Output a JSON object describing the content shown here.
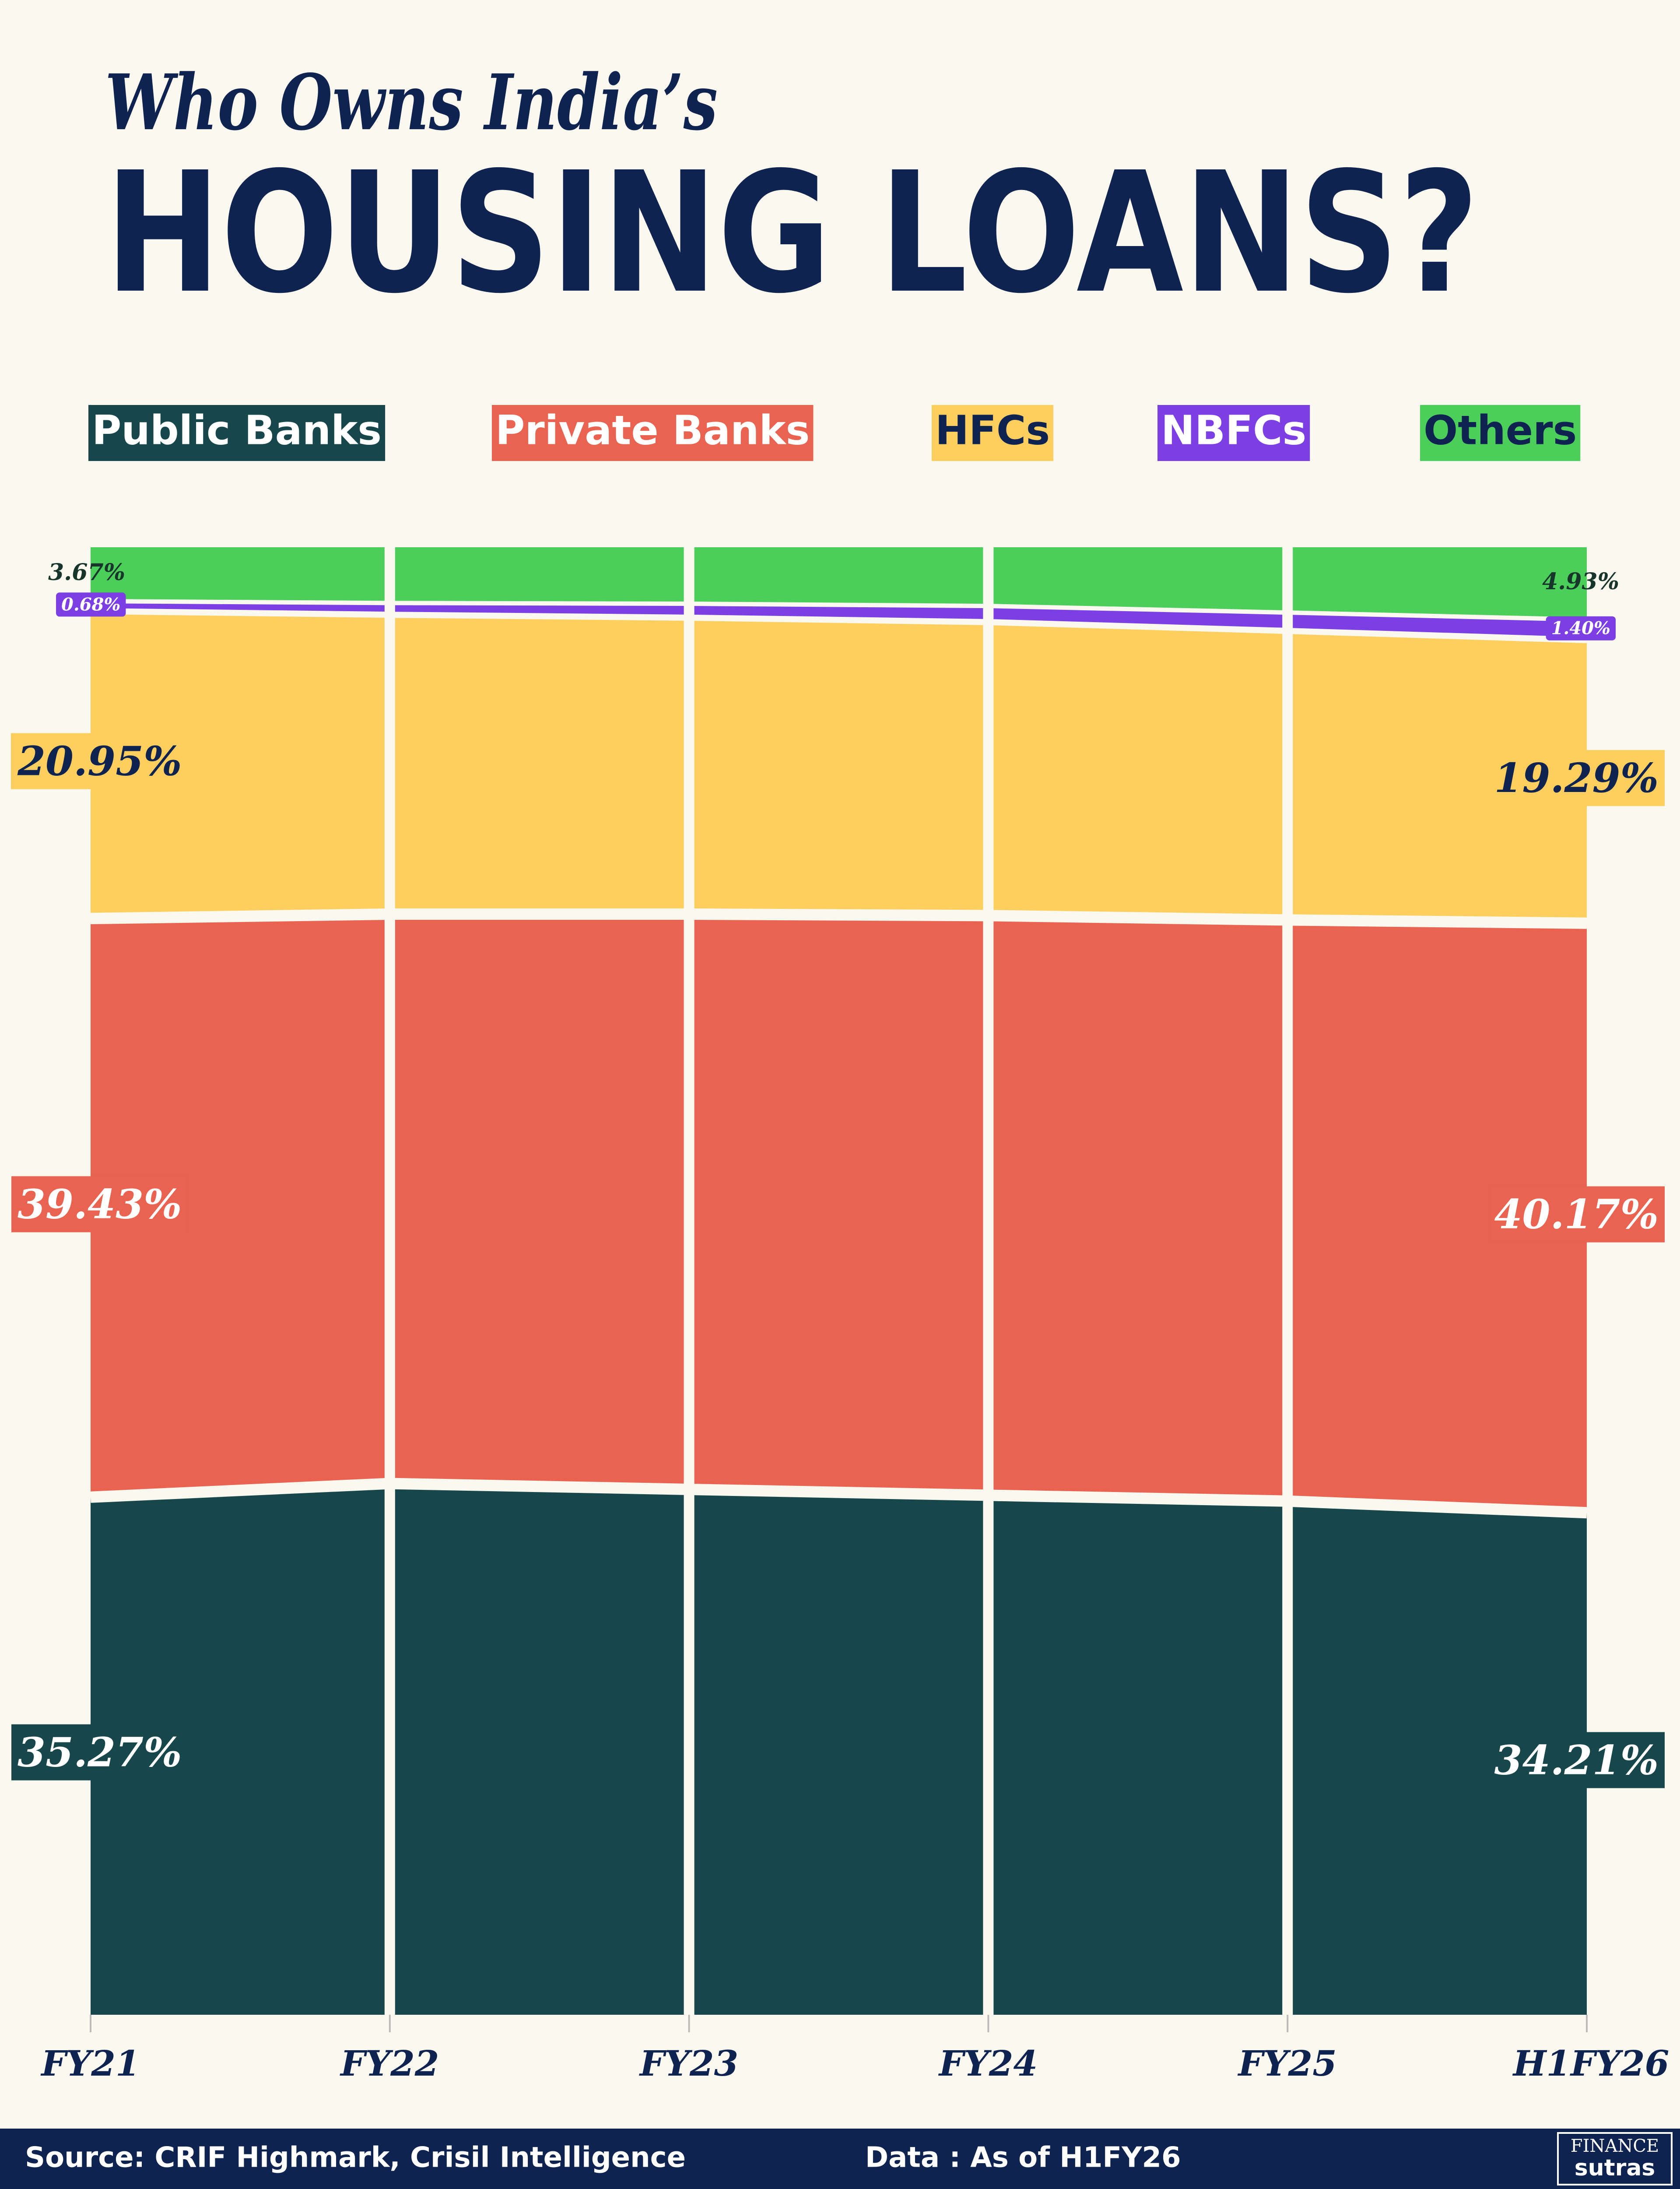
{
  "chart_data": {
    "type": "stacked_area",
    "title": "Who Owns India’s",
    "subtitle": "HOUSING LOANS?",
    "categories": [
      "FY21",
      "FY22",
      "FY23",
      "FY24",
      "FY25",
      "H1FY26"
    ],
    "ylim": [
      0,
      100
    ],
    "series": [
      {
        "name": "Public Banks",
        "color": "#17474b",
        "label_color": "#ffffff",
        "values": [
          35.27,
          36.2,
          35.8,
          35.4,
          35.0,
          34.21
        ],
        "value_labels": [
          "35.27%",
          null,
          null,
          null,
          null,
          "34.21%"
        ]
      },
      {
        "name": "Private Banks",
        "color": "#e96350",
        "label_color": "#ffffff",
        "values": [
          39.43,
          38.8,
          39.2,
          39.5,
          39.6,
          40.17
        ],
        "value_labels": [
          "39.43%",
          null,
          null,
          null,
          null,
          "40.17%"
        ]
      },
      {
        "name": "HFCs",
        "color": "#fecf5e",
        "label_color": "#0f2350",
        "values": [
          20.95,
          20.4,
          20.2,
          20.0,
          19.7,
          19.29
        ],
        "value_labels": [
          "20.95%",
          null,
          null,
          null,
          null,
          "19.29%"
        ]
      },
      {
        "name": "NBFCs",
        "color": "#7b3fe4",
        "label_color": "#ffffff",
        "values": [
          0.68,
          0.8,
          0.95,
          1.1,
          1.25,
          1.4
        ],
        "value_labels": [
          "0.68%",
          null,
          null,
          null,
          null,
          "1.40%"
        ]
      },
      {
        "name": "Others",
        "color": "#4ccf5a",
        "label_color": "#0f2350",
        "values": [
          3.67,
          3.8,
          3.85,
          4.0,
          4.45,
          4.93
        ],
        "value_labels": [
          "3.67%",
          null,
          null,
          null,
          null,
          "4.93%"
        ]
      }
    ],
    "source": "Source: CRIF Highmark, Crisil Intelligence",
    "note": "Data : As of H1FY26",
    "brand": {
      "top": "FINANCE",
      "bottom": "sutras"
    }
  }
}
